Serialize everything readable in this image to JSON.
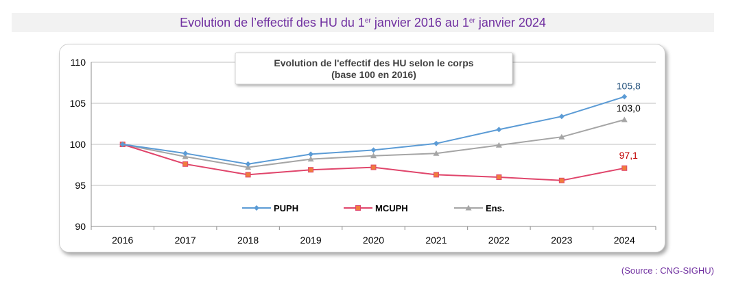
{
  "header": {
    "title_part1": "Evolution de l’effectif des HU du 1",
    "sup1": "er",
    "title_part2": " janvier 2016 au 1",
    "sup2": "er",
    "title_part3": " janvier 2024"
  },
  "source": "(Source : CNG-SIGHU)",
  "colors": {
    "puph": "#5b9bd5",
    "mcuph": "#e0456b",
    "mcuph_marker": "#f07d3c",
    "ens": "#a5a5a5",
    "label_puph": "#1f4e79",
    "label_mcuph": "#c00000",
    "label_ens": "#000000"
  },
  "chart_data": {
    "type": "line",
    "title": "Evolution de l'effectif des HU selon le corps",
    "subtitle": "(base 100 en 2016)",
    "categories": [
      "2016",
      "2017",
      "2018",
      "2019",
      "2020",
      "2021",
      "2022",
      "2023",
      "2024"
    ],
    "ylim": [
      90,
      110
    ],
    "yticks": [
      90,
      95,
      100,
      105,
      110
    ],
    "ytick_labels": [
      "90",
      "95",
      "100",
      "105",
      "110"
    ],
    "grid": true,
    "legend_position": "bottom-center",
    "series": [
      {
        "name": "PUPH",
        "marker": "diamond",
        "values": [
          100,
          98.9,
          97.6,
          98.8,
          99.3,
          100.1,
          101.8,
          103.4,
          105.8
        ],
        "end_label": "105,8"
      },
      {
        "name": "MCUPH",
        "marker": "square",
        "values": [
          100,
          97.6,
          96.3,
          96.9,
          97.2,
          96.3,
          96.0,
          95.6,
          97.1
        ],
        "end_label": "97,1"
      },
      {
        "name": "Ens.",
        "marker": "triangle",
        "values": [
          100,
          98.5,
          97.2,
          98.2,
          98.6,
          98.9,
          99.9,
          100.9,
          103.0
        ],
        "end_label": "103,0"
      }
    ]
  }
}
